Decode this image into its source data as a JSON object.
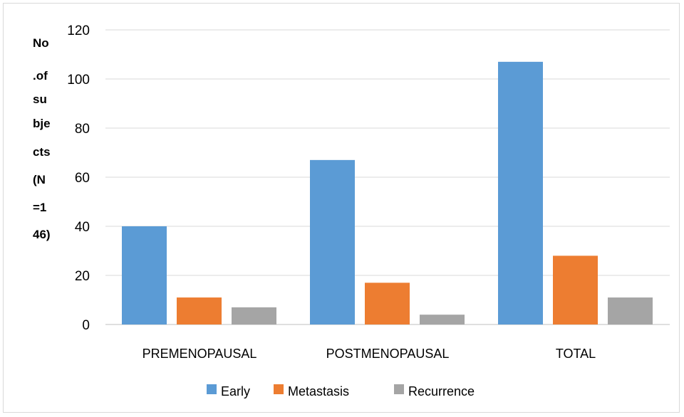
{
  "chart_data": {
    "type": "bar",
    "ylabel_lines": [
      "No",
      ".of",
      "su",
      "bje",
      "cts",
      "(N",
      "=1",
      "46)"
    ],
    "xlabel": "",
    "categories": [
      "PREMENOPAUSAL",
      "POSTMENOPAUSAL",
      "TOTAL"
    ],
    "series": [
      {
        "name": "Early",
        "color": "#5b9bd5",
        "values": [
          40,
          67,
          107
        ]
      },
      {
        "name": "Metastasis",
        "color": "#ed7d31",
        "values": [
          11,
          17,
          28
        ]
      },
      {
        "name": "Recurrence",
        "color": "#a5a5a5",
        "values": [
          7,
          4,
          11
        ]
      }
    ],
    "ylim": [
      0,
      120
    ],
    "yticks": [
      0,
      20,
      40,
      60,
      80,
      100,
      120
    ],
    "grid": true,
    "legend": "bottom"
  }
}
